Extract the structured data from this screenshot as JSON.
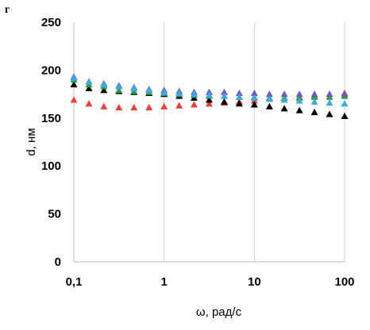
{
  "chart_data": {
    "type": "scatter",
    "panel_letter": "г",
    "xlabel": "ω, рад/с",
    "ylabel": "d, нм",
    "xscale": "log",
    "xlim": [
      0.1,
      100
    ],
    "ylim": [
      0,
      250
    ],
    "grid": "vertical",
    "legend": "none",
    "x_ticks": [
      {
        "value": 0.1,
        "label": "0,1"
      },
      {
        "value": 1,
        "label": "1"
      },
      {
        "value": 10,
        "label": "10"
      },
      {
        "value": 100,
        "label": "100"
      }
    ],
    "y_ticks": [
      {
        "value": 0,
        "label": "0"
      },
      {
        "value": 50,
        "label": "50"
      },
      {
        "value": 100,
        "label": "100"
      },
      {
        "value": 150,
        "label": "150"
      },
      {
        "value": 200,
        "label": "200"
      },
      {
        "value": 250,
        "label": "250"
      }
    ],
    "x": [
      0.1,
      0.147,
      0.215,
      0.316,
      0.464,
      0.681,
      1,
      1.47,
      2.15,
      3.16,
      4.64,
      6.81,
      10,
      14.7,
      21.5,
      31.6,
      46.4,
      68.1,
      100
    ],
    "series": [
      {
        "color": "#e8403a",
        "values": [
          169,
          165,
          162,
          161,
          161,
          161,
          162,
          163,
          164,
          165,
          166,
          167,
          168,
          170,
          171,
          172,
          173,
          175,
          176
        ]
      },
      {
        "color": "#000000",
        "values": [
          185,
          181,
          179,
          178,
          177,
          176,
          175,
          173,
          171,
          169,
          167,
          165,
          164,
          162,
          160,
          158,
          156,
          154,
          152
        ]
      },
      {
        "color": "#2e9e46",
        "values": [
          190,
          185,
          183,
          179,
          178,
          177,
          176,
          175,
          174,
          173,
          173,
          172,
          172,
          171,
          171,
          171,
          172,
          172,
          173
        ]
      },
      {
        "color": "#6a5fb8",
        "values": [
          193,
          188,
          186,
          184,
          182,
          180,
          179,
          178,
          177,
          177,
          177,
          176,
          176,
          175,
          175,
          175,
          175,
          175,
          175
        ]
      },
      {
        "color": "#3fa9e0",
        "values": [
          192,
          188,
          185,
          183,
          181,
          179,
          177,
          176,
          175,
          174,
          173,
          172,
          171,
          170,
          169,
          168,
          167,
          166,
          165
        ]
      }
    ]
  }
}
